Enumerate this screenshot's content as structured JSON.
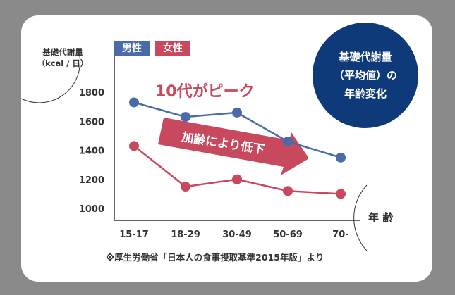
{
  "chart_data": {
    "type": "line",
    "categories": [
      "15-17",
      "18-29",
      "30-49",
      "50-69",
      "70-"
    ],
    "series": [
      {
        "name": "男性",
        "values": [
          1730,
          1630,
          1660,
          1460,
          1350
        ],
        "color": "#4a6aa8"
      },
      {
        "name": "女性",
        "values": [
          1430,
          1150,
          1200,
          1120,
          1100
        ],
        "color": "#c8485e"
      }
    ],
    "yticks": [
      1000,
      1200,
      1400,
      1600,
      1800
    ],
    "ylim": [
      1000,
      1800
    ],
    "ylabel_line1": "基礎代謝量",
    "ylabel_line2": "（kcal / 日）",
    "xlabel": "年 齢",
    "annotation_peak": "10代がピーク",
    "annotation_arrow": "加齢により低下",
    "badge_lines": [
      "基礎代謝量",
      "（平均値）の",
      "年齢変化"
    ],
    "source": "※厚生労働省「日本人の食事摂取基準2015年版」より",
    "legend_placement": "top-left",
    "grid": false
  }
}
